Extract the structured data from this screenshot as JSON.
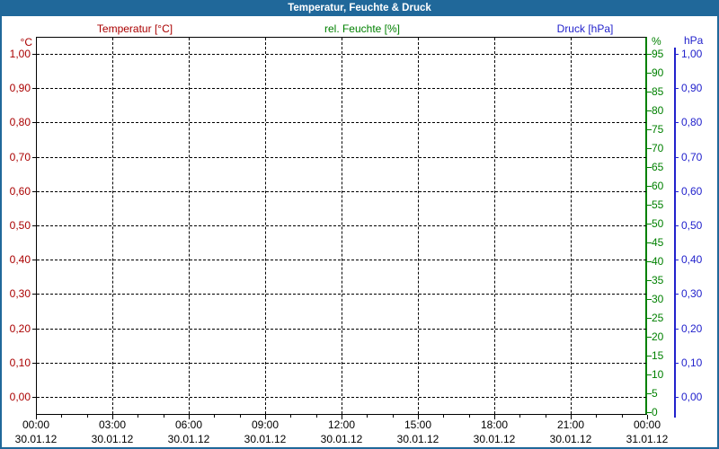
{
  "window": {
    "title": "Temperatur, Feuchte & Druck"
  },
  "colors": {
    "titlebar": "#20689a",
    "frame": "#20689a",
    "temperature": "#aa0000",
    "humidity": "#008000",
    "pressure": "#2222cc",
    "grid": "#000000",
    "background": "#ffffff",
    "title_text": "#ffffff"
  },
  "series_headers": [
    {
      "label": "Temperatur [°C]",
      "color_key": "temperature"
    },
    {
      "label": "rel. Feuchte [%]",
      "color_key": "humidity"
    },
    {
      "label": "Druck [hPa]",
      "color_key": "pressure"
    }
  ],
  "axes": {
    "temperature": {
      "unit": "°C",
      "tick_labels": [
        "1,00",
        "0,90",
        "0,80",
        "0,70",
        "0,60",
        "0,50",
        "0,40",
        "0,30",
        "0,20",
        "0,10",
        "0,00"
      ]
    },
    "humidity": {
      "unit": "%",
      "tick_labels": [
        "95",
        "90",
        "85",
        "80",
        "75",
        "70",
        "65",
        "60",
        "55",
        "50",
        "45",
        "40",
        "35",
        "30",
        "25",
        "20",
        "15",
        "10",
        "5",
        "0"
      ]
    },
    "pressure": {
      "unit": "hPa",
      "tick_labels": [
        "1,00",
        "0,90",
        "0,80",
        "0,70",
        "0,60",
        "0,50",
        "0,40",
        "0,30",
        "0,20",
        "0,10",
        "0,00"
      ]
    },
    "time": {
      "ticks": [
        {
          "time": "00:00",
          "date": "30.01.12"
        },
        {
          "time": "03:00",
          "date": "30.01.12"
        },
        {
          "time": "06:00",
          "date": "30.01.12"
        },
        {
          "time": "09:00",
          "date": "30.01.12"
        },
        {
          "time": "12:00",
          "date": "30.01.12"
        },
        {
          "time": "15:00",
          "date": "30.01.12"
        },
        {
          "time": "18:00",
          "date": "30.01.12"
        },
        {
          "time": "21:00",
          "date": "30.01.12"
        },
        {
          "time": "00:00",
          "date": "31.01.12"
        }
      ]
    }
  },
  "chart_data": {
    "type": "line",
    "title": "Temperatur, Feuchte & Druck",
    "x": {
      "label": "",
      "range": [
        "30.01.12 00:00",
        "31.01.12 00:00"
      ],
      "major_tick_interval_hours": 3,
      "minor_tick_interval_hours": 1,
      "tick_labels": [
        "00:00 30.01.12",
        "03:00 30.01.12",
        "06:00 30.01.12",
        "09:00 30.01.12",
        "12:00 30.01.12",
        "15:00 30.01.12",
        "18:00 30.01.12",
        "21:00 30.01.12",
        "00:00 31.01.12"
      ]
    },
    "y_left_temperature": {
      "label": "°C",
      "range": [
        0.0,
        1.0
      ],
      "tick_step": 0.1,
      "color": "#aa0000"
    },
    "y_right_humidity": {
      "label": "%",
      "range": [
        0,
        100
      ],
      "tick_step": 5,
      "color": "#008000"
    },
    "y_right_pressure": {
      "label": "hPa",
      "range": [
        0.0,
        1.0
      ],
      "tick_step": 0.1,
      "color": "#2222cc"
    },
    "grid": true,
    "grid_style": "dashed",
    "legend_position": "top",
    "series": [
      {
        "name": "Temperatur [°C]",
        "axis": "left",
        "unit": "°C",
        "points": []
      },
      {
        "name": "rel. Feuchte [%]",
        "axis": "right-inner",
        "unit": "%",
        "points": []
      },
      {
        "name": "Druck [hPa]",
        "axis": "right-outer",
        "unit": "hPa",
        "points": []
      }
    ]
  }
}
